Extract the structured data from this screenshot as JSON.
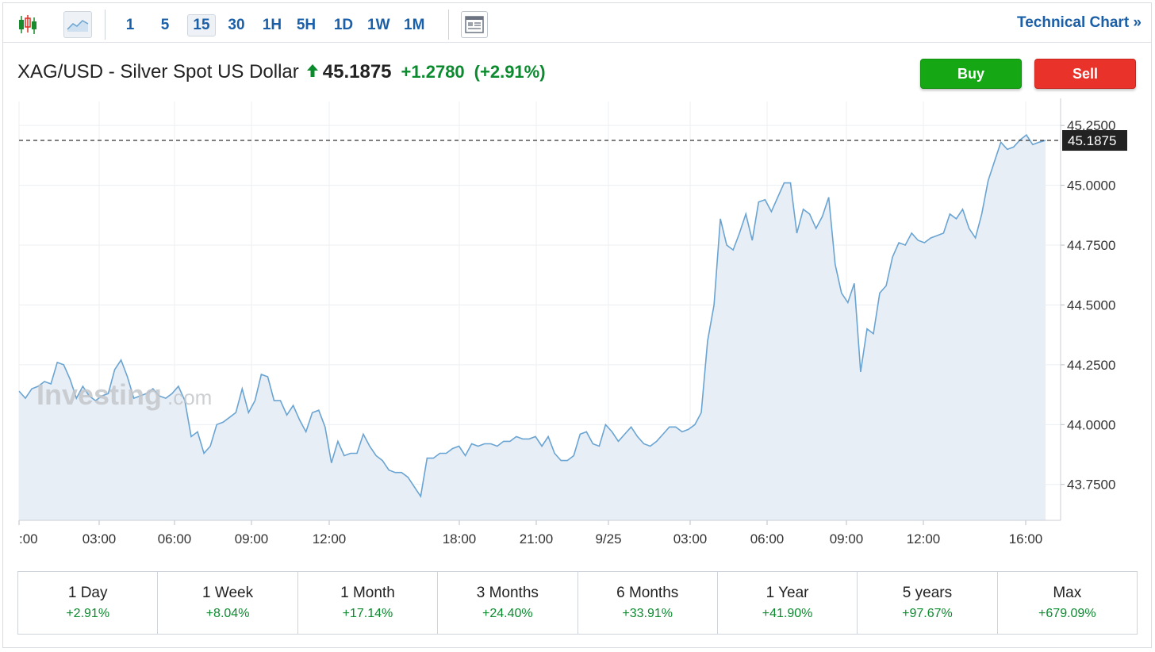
{
  "toolbar": {
    "icons": [
      "candlestick-icon",
      "area-chart-icon",
      "news-panel-icon"
    ],
    "timeframes": [
      "1",
      "5",
      "15",
      "30",
      "1H",
      "5H",
      "1D",
      "1W",
      "1M"
    ],
    "active_timeframe": "15",
    "technical_chart_label": "Technical Chart »"
  },
  "header": {
    "instrument": "XAG/USD - Silver Spot US Dollar",
    "price": "45.1875",
    "change": "+1.2780",
    "change_pct": "(+2.91%)"
  },
  "actions": {
    "buy_label": "Buy",
    "sell_label": "Sell"
  },
  "watermark": {
    "brand": "Investing",
    "suffix": ".com"
  },
  "colors": {
    "line": "#6aa4d2",
    "fill": "#e7eef6",
    "positive": "#0b8a2e",
    "buy": "#15a814",
    "sell": "#e8322a",
    "link": "#1a5fa8"
  },
  "chart_data": {
    "type": "area",
    "series": [
      {
        "values": [
          44.14,
          44.11,
          44.15,
          44.16,
          44.18,
          44.17,
          44.26,
          44.25,
          44.19,
          44.11,
          44.16,
          44.12,
          44.1,
          44.12,
          44.13,
          44.23,
          44.27,
          44.2,
          44.11,
          44.12,
          44.13,
          44.15,
          44.12,
          44.11,
          44.13,
          44.16,
          44.1,
          43.95,
          43.97,
          43.88,
          43.91,
          44.0,
          44.01,
          44.03,
          44.05,
          44.15,
          44.05,
          44.1,
          44.21,
          44.2,
          44.1,
          44.1,
          44.04,
          44.08,
          44.02,
          43.97,
          44.05,
          44.06,
          43.99,
          43.84,
          43.93,
          43.87,
          43.88,
          43.88,
          43.96,
          43.91,
          43.87,
          43.85,
          43.81,
          43.8,
          43.8,
          43.78,
          43.74,
          43.7,
          43.86,
          43.86,
          43.88,
          43.88,
          43.9,
          43.91,
          43.87,
          43.92,
          43.91,
          43.92,
          43.92,
          43.91,
          43.93,
          43.93,
          43.95,
          43.94,
          43.94,
          43.95,
          43.91,
          43.95,
          43.88,
          43.85,
          43.85,
          43.87,
          43.96,
          43.97,
          43.92,
          43.91,
          44.0,
          43.97,
          43.93,
          43.96,
          43.99,
          43.95,
          43.92,
          43.91,
          43.93,
          43.96,
          43.99,
          43.99,
          43.97,
          43.98,
          44.0,
          44.05,
          44.35,
          44.5,
          44.86,
          44.75,
          44.73,
          44.8,
          44.88,
          44.77,
          44.93,
          44.94,
          44.89,
          44.95,
          45.01,
          45.01,
          44.8,
          44.9,
          44.88,
          44.82,
          44.87,
          44.95,
          44.67,
          44.55,
          44.51,
          44.59,
          44.22,
          44.4,
          44.38,
          44.55,
          44.58,
          44.7,
          44.76,
          44.75,
          44.8,
          44.77,
          44.76,
          44.78,
          44.79,
          44.8,
          44.88,
          44.86,
          44.9,
          44.82,
          44.78,
          44.88,
          45.02,
          45.1,
          45.18,
          45.15,
          45.16,
          45.19,
          45.21,
          45.17,
          45.18,
          45.1875
        ]
      }
    ],
    "x_tick_labels": [
      ":00",
      "03:00",
      "06:00",
      "09:00",
      "12:00",
      "18:00",
      "21:00",
      "9/25",
      "03:00",
      "06:00",
      "09:00",
      "12:00",
      "16:00"
    ],
    "y_tick_labels": [
      "45.2500",
      "45.0000",
      "44.7500",
      "44.5000",
      "44.2500",
      "44.0000",
      "43.7500"
    ],
    "ylim": [
      43.6,
      45.35
    ],
    "last_value_label": "45.1875",
    "grid": true
  },
  "performance": [
    {
      "label": "1 Day",
      "value": "+2.91%"
    },
    {
      "label": "1 Week",
      "value": "+8.04%"
    },
    {
      "label": "1 Month",
      "value": "+17.14%"
    },
    {
      "label": "3 Months",
      "value": "+24.40%"
    },
    {
      "label": "6 Months",
      "value": "+33.91%"
    },
    {
      "label": "1 Year",
      "value": "+41.90%"
    },
    {
      "label": "5 years",
      "value": "+97.67%"
    },
    {
      "label": "Max",
      "value": "+679.09%"
    }
  ]
}
